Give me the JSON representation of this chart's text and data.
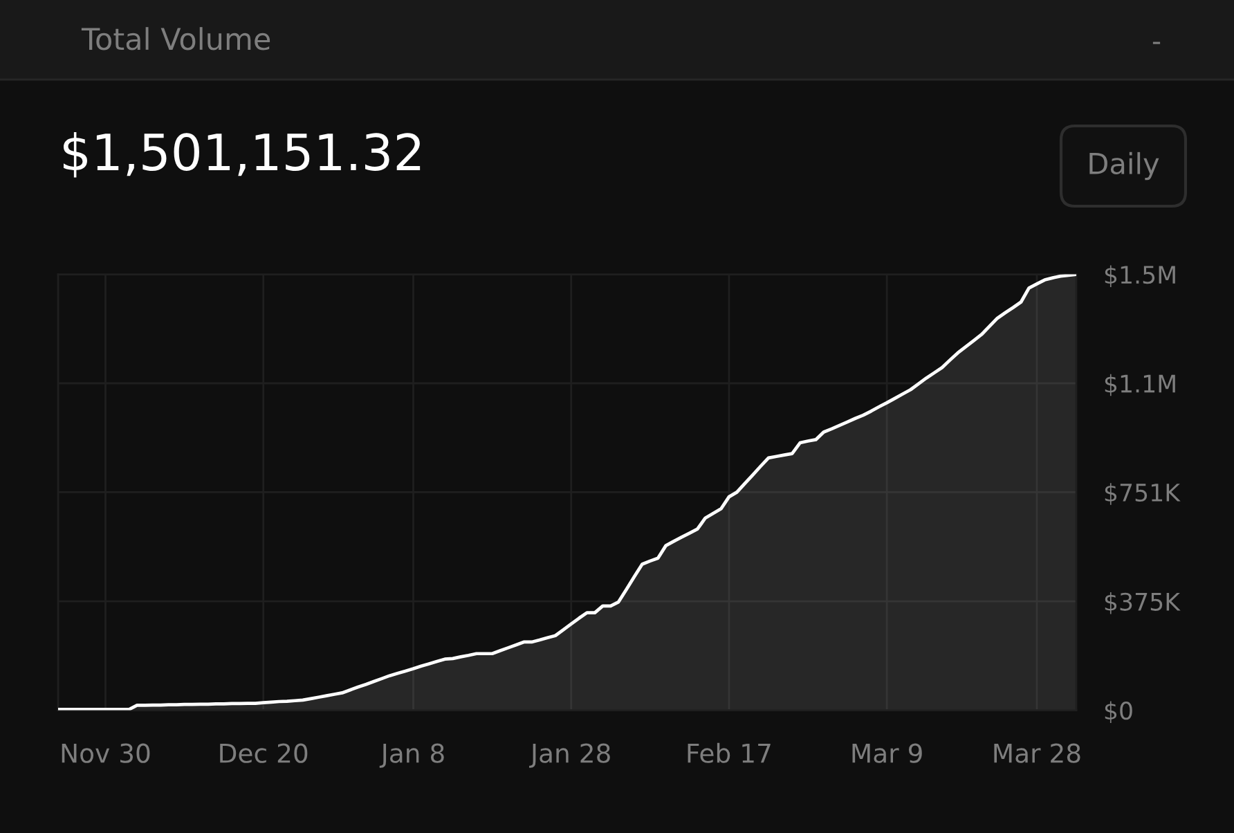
{
  "chart_data": {
    "type": "area",
    "title": "Total Volume",
    "subtitle": "$1,501,151.32",
    "annotations": [
      "-",
      "Daily"
    ],
    "categories": [
      null,
      null,
      null,
      null,
      null,
      null,
      "Nov 30",
      null,
      null,
      null,
      null,
      null,
      null,
      null,
      null,
      null,
      null,
      null,
      null,
      null,
      null,
      null,
      null,
      null,
      null,
      null,
      "Dec 20",
      null,
      null,
      null,
      null,
      null,
      null,
      null,
      null,
      null,
      null,
      null,
      null,
      null,
      null,
      null,
      null,
      null,
      null,
      "Jan 8",
      null,
      null,
      null,
      null,
      null,
      null,
      null,
      null,
      null,
      null,
      null,
      null,
      null,
      null,
      null,
      null,
      null,
      null,
      null,
      "Jan 28",
      null,
      null,
      null,
      null,
      null,
      null,
      null,
      null,
      null,
      null,
      null,
      null,
      null,
      null,
      null,
      null,
      null,
      null,
      null,
      "Feb 17",
      null,
      null,
      null,
      null,
      null,
      null,
      null,
      null,
      null,
      null,
      null,
      null,
      null,
      null,
      null,
      null,
      null,
      null,
      null,
      "Mar 9",
      null,
      null,
      null,
      null,
      null,
      null,
      null,
      null,
      null,
      null,
      null,
      null,
      null,
      null,
      null,
      null,
      null,
      null,
      "Mar 28",
      null,
      null,
      null,
      null,
      null
    ],
    "series": [
      {
        "color": "#ffffff",
        "values": [
          3000,
          3000,
          3000,
          3000,
          3000,
          3000,
          3000,
          3000,
          3000,
          3000,
          17000,
          17000,
          18000,
          18000,
          19000,
          19000,
          20000,
          20000,
          21000,
          21000,
          22000,
          22000,
          23000,
          23000,
          24000,
          24000,
          26000,
          28000,
          30000,
          31000,
          33000,
          35000,
          40000,
          45000,
          50000,
          55000,
          60000,
          70000,
          80000,
          89000,
          99000,
          109000,
          119000,
          127000,
          135000,
          143000,
          152000,
          160000,
          168000,
          176000,
          178000,
          184000,
          189000,
          195000,
          195000,
          195000,
          205000,
          215000,
          225000,
          235000,
          235000,
          242000,
          250000,
          257000,
          277000,
          297000,
          317000,
          336000,
          336000,
          359000,
          359000,
          373000,
          416000,
          460000,
          503000,
          514000,
          524000,
          567000,
          582000,
          596000,
          610000,
          624000,
          662000,
          678000,
          694000,
          735000,
          751000,
          781000,
          810000,
          840000,
          869000,
          874000,
          879000,
          884000,
          921000,
          927000,
          932000,
          958000,
          969000,
          981000,
          993000,
          1005000,
          1016000,
          1030000,
          1045000,
          1059000,
          1074000,
          1089000,
          1104000,
          1124000,
          1144000,
          1162000,
          1180000,
          1206000,
          1231000,
          1252000,
          1273000,
          1294000,
          1322000,
          1350000,
          1369000,
          1387000,
          1406000,
          1454000,
          1468000,
          1482000,
          1489000,
          1495000,
          1498000,
          1501000
        ]
      }
    ],
    "ylim": [
      0,
      1501000
    ],
    "yticks": [
      {
        "value": 0,
        "label": "$0"
      },
      {
        "value": 375000,
        "label": "$375K"
      },
      {
        "value": 751000,
        "label": "$751K"
      },
      {
        "value": 1126000,
        "label": "$1.1M"
      },
      {
        "value": 1501000,
        "label": "$1.5M"
      }
    ],
    "grid": true
  }
}
